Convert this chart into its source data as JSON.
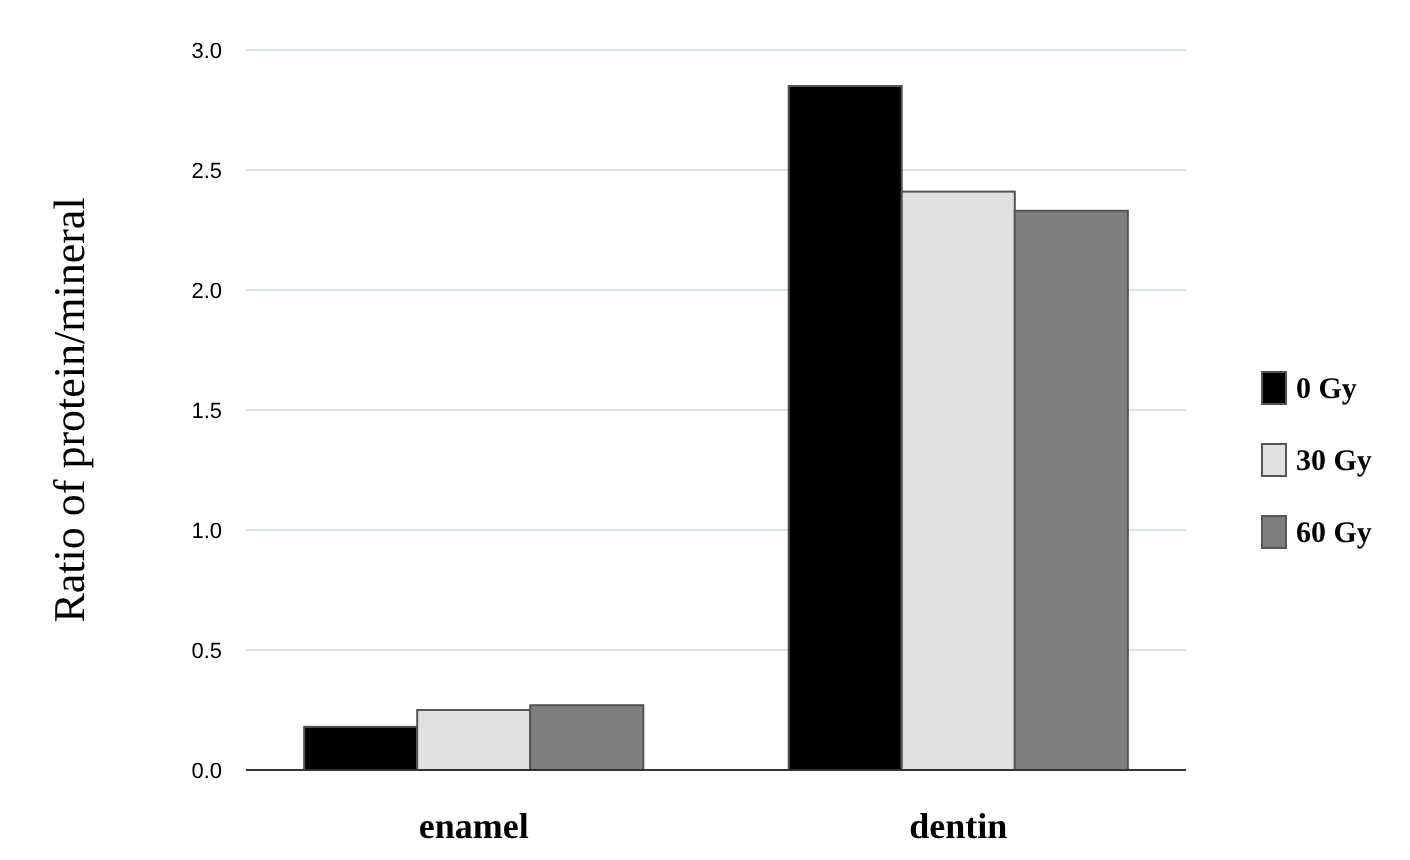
{
  "chart_data": {
    "type": "bar",
    "ylabel": "Ratio of protein/mineral",
    "categories": [
      "enamel",
      "dentin"
    ],
    "series": [
      {
        "name": "0 Gy",
        "color": "#000000",
        "values": [
          0.18,
          2.85
        ]
      },
      {
        "name": "30 Gy",
        "color": "#e0e0e0",
        "values": [
          0.25,
          2.41
        ]
      },
      {
        "name": "60 Gy",
        "color": "#7f7f7f",
        "values": [
          0.27,
          2.33
        ]
      }
    ],
    "ylim": [
      0,
      3
    ],
    "yticks": [
      {
        "value": 0,
        "label": "0.0"
      },
      {
        "value": 0.5,
        "label": "0.5"
      },
      {
        "value": 1,
        "label": "1.0"
      },
      {
        "value": 1.5,
        "label": "1.5"
      },
      {
        "value": 2,
        "label": "2.0"
      },
      {
        "value": 2.5,
        "label": "2.5"
      },
      {
        "value": 3,
        "label": "3.0"
      }
    ],
    "grid": "y",
    "legend": "right"
  }
}
